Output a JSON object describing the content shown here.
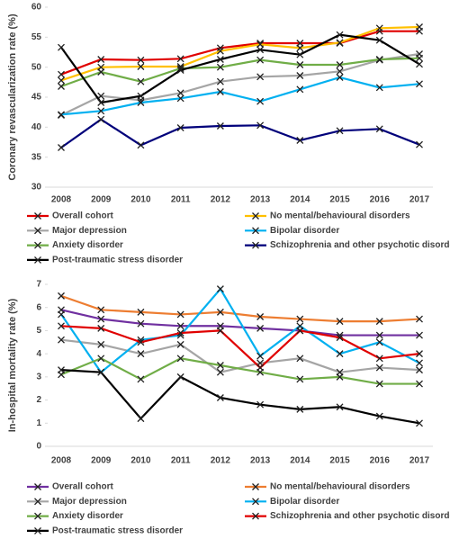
{
  "chart_data": [
    {
      "type": "line",
      "ylabel": "Coronary revascularization rate (%)",
      "categories": [
        "2008",
        "2009",
        "2010",
        "2011",
        "2012",
        "2013",
        "2014",
        "2015",
        "2016",
        "2017"
      ],
      "ylim": [
        30,
        60
      ],
      "yticks": [
        30,
        35,
        40,
        45,
        50,
        55,
        60
      ],
      "grid": false,
      "marker": "x",
      "series": [
        {
          "name": "Overall cohort",
          "color": "#e00000",
          "values": [
            48.8,
            51.3,
            51.2,
            51.4,
            53.2,
            54.0,
            54.0,
            54.0,
            56.0,
            56.0
          ]
        },
        {
          "name": "No mental/behavioural disorders",
          "color": "#ffc000",
          "values": [
            47.8,
            50.0,
            50.1,
            50.1,
            52.7,
            53.8,
            53.2,
            54.1,
            56.5,
            56.7
          ]
        },
        {
          "name": "Major depression",
          "color": "#a5a5a5",
          "values": [
            42.0,
            45.2,
            44.5,
            45.7,
            47.6,
            48.4,
            48.6,
            49.3,
            51.2,
            52.2
          ]
        },
        {
          "name": "Bipolar disorder",
          "color": "#00b0f0",
          "values": [
            42.1,
            42.7,
            44.1,
            44.8,
            45.9,
            44.3,
            46.3,
            48.3,
            46.6,
            47.2
          ]
        },
        {
          "name": "Anxiety disorder",
          "color": "#70ad47",
          "values": [
            46.8,
            49.2,
            47.6,
            49.8,
            50.0,
            51.2,
            50.4,
            50.4,
            51.3,
            51.5
          ]
        },
        {
          "name": "Schizophrenia and other psychotic disorders",
          "color": "#00007a",
          "values": [
            36.6,
            41.3,
            37.0,
            39.9,
            40.2,
            40.3,
            37.8,
            39.4,
            39.7,
            37.1
          ]
        },
        {
          "name": "Post-traumatic stress disorder",
          "color": "#000000",
          "values": [
            53.3,
            44.1,
            45.2,
            49.5,
            51.3,
            52.9,
            52.1,
            55.4,
            54.5,
            50.5
          ]
        }
      ]
    },
    {
      "type": "line",
      "ylabel": "In-hospital mortality rate (%)",
      "categories": [
        "2008",
        "2009",
        "2010",
        "2011",
        "2012",
        "2013",
        "2014",
        "2015",
        "2016",
        "2017"
      ],
      "ylim": [
        0,
        7
      ],
      "yticks": [
        0,
        1,
        2,
        3,
        4,
        5,
        6,
        7
      ],
      "grid": false,
      "marker": "x",
      "series": [
        {
          "name": "Overall cohort",
          "color": "#7030a0",
          "values": [
            5.9,
            5.5,
            5.3,
            5.2,
            5.2,
            5.1,
            5.0,
            4.8,
            4.8,
            4.8
          ]
        },
        {
          "name": "No mental/behavioural disorders",
          "color": "#ed7d31",
          "values": [
            6.5,
            5.9,
            5.8,
            5.7,
            5.8,
            5.6,
            5.5,
            5.4,
            5.4,
            5.5
          ]
        },
        {
          "name": "Major depression",
          "color": "#a5a5a5",
          "values": [
            4.6,
            4.4,
            4.0,
            4.4,
            3.2,
            3.6,
            3.8,
            3.2,
            3.4,
            3.3
          ]
        },
        {
          "name": "Bipolar disorder",
          "color": "#00b0f0",
          "values": [
            5.7,
            3.2,
            4.6,
            4.8,
            6.8,
            3.9,
            5.2,
            4.0,
            4.5,
            3.6
          ]
        },
        {
          "name": "Anxiety disorder",
          "color": "#70ad47",
          "values": [
            3.1,
            3.8,
            2.9,
            3.8,
            3.5,
            3.2,
            2.9,
            3.0,
            2.7,
            2.7
          ]
        },
        {
          "name": "Schizophrenia and other psychotic disorders",
          "color": "#e00000",
          "values": [
            5.2,
            5.1,
            4.5,
            4.9,
            5.0,
            3.4,
            5.0,
            4.7,
            3.8,
            4.0
          ]
        },
        {
          "name": "Post-traumatic stress disorder",
          "color": "#000000",
          "values": [
            3.3,
            3.2,
            1.2,
            3.0,
            2.1,
            1.8,
            1.6,
            1.7,
            1.3,
            1.0
          ]
        }
      ]
    }
  ]
}
